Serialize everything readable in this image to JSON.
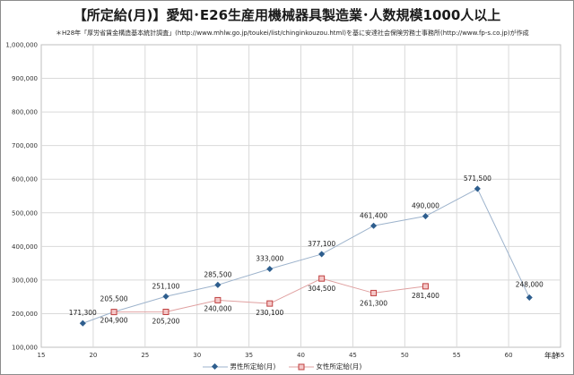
{
  "chart_data": {
    "type": "line",
    "title": "【所定給(月)】愛知･E26生産用機械器具製造業･人数規模1000人以上",
    "subtitle": "＊H28年「厚労省賃金構造基本統計調査」(http://www.mhlw.go.jp/toukei/list/chinginkouzou.html)を基に安達社会保険労務士事務所(http://www.fp-s.co.jp)が作成",
    "xlabel": "年齢",
    "ylabel": "",
    "xlim": [
      15,
      65
    ],
    "ylim": [
      100000,
      1000000
    ],
    "x_ticks": [
      "15",
      "20",
      "25",
      "30",
      "35",
      "40",
      "45",
      "50",
      "55",
      "60",
      "65"
    ],
    "y_ticks": [
      "100,000",
      "200,000",
      "300,000",
      "400,000",
      "500,000",
      "600,000",
      "700,000",
      "800,000",
      "900,000",
      "1,000,000"
    ],
    "grid": true,
    "legend_position": "bottom",
    "series": [
      {
        "name": "男性所定給(月)",
        "color": "#2e5e8e",
        "marker": "diamond",
        "x": [
          19,
          22,
          27,
          32,
          37,
          42,
          47,
          52,
          57,
          62
        ],
        "values": [
          171300,
          205500,
          251100,
          285500,
          333000,
          377100,
          461400,
          490000,
          571500,
          248000
        ],
        "labels": [
          "171,300",
          "205,500",
          "251,100",
          "285,500",
          "333,000",
          "377,100",
          "461,400",
          "490,000",
          "571,500",
          "248,000"
        ]
      },
      {
        "name": "女性所定給(月)",
        "color": "#d06060",
        "marker": "square",
        "x": [
          22,
          27,
          32,
          37,
          42,
          47,
          52
        ],
        "values": [
          204900,
          205200,
          240000,
          230100,
          304500,
          261300,
          281400
        ],
        "labels": [
          "204,900",
          "205,200",
          "240,000",
          "230,100",
          "304,500",
          "261,300",
          "281,400"
        ]
      }
    ]
  }
}
